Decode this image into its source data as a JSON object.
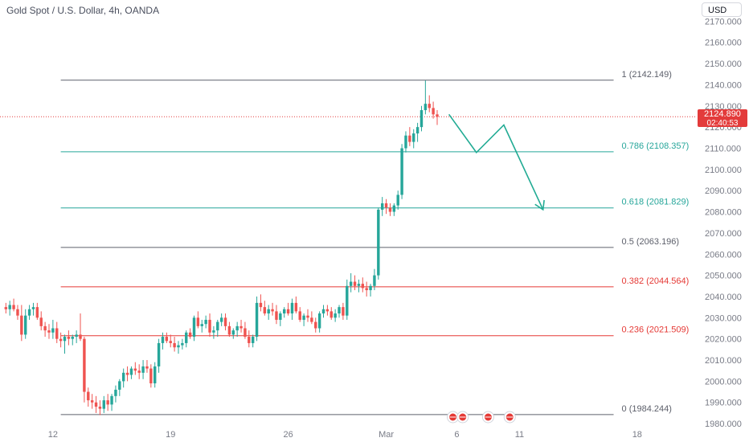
{
  "header": {
    "symbol_title": "Gold Spot / U.S. Dollar, 4h, OANDA",
    "currency_label": "USD"
  },
  "price_tag": {
    "price": "2124.890",
    "countdown": "02:40:53",
    "color": "#e33b3b"
  },
  "colors": {
    "up": "#26a69a",
    "down": "#ef5350",
    "fib_green": "#26a69a",
    "fib_red": "#e53935",
    "fib_gray": "#5d606b",
    "projection": "#22ab94"
  },
  "chart_data": {
    "type": "candlestick",
    "y_ticks": [
      "1980.000",
      "1990.000",
      "2000.000",
      "2010.000",
      "2020.000",
      "2030.000",
      "2040.000",
      "2050.000",
      "2060.000",
      "2070.000",
      "2080.000",
      "2090.000",
      "2100.000",
      "2110.000",
      "2120.000",
      "2130.000",
      "2140.000",
      "2150.000",
      "2160.000",
      "2170.000"
    ],
    "ylim": [
      1977,
      2180
    ],
    "x_ticks": [
      {
        "label": "12",
        "bar": 12
      },
      {
        "label": "19",
        "bar": 42
      },
      {
        "label": "26",
        "bar": 72
      },
      {
        "label": "Mar",
        "bar": 97
      },
      {
        "label": "6",
        "bar": 115
      },
      {
        "label": "11",
        "bar": 131
      },
      {
        "label": "18",
        "bar": 161
      }
    ],
    "xlim": [
      -1.5,
      176
    ],
    "fib_levels": [
      {
        "label": "1 (2142.149)",
        "value": 2142.149,
        "color": "gray"
      },
      {
        "label": "0.786 (2108.357)",
        "value": 2108.357,
        "color": "green"
      },
      {
        "label": "0.618 (2081.829)",
        "value": 2081.829,
        "color": "green"
      },
      {
        "label": "0.5 (2063.196)",
        "value": 2063.196,
        "color": "gray"
      },
      {
        "label": "0.382 (2044.564)",
        "value": 2044.564,
        "color": "red"
      },
      {
        "label": "0.236 (2021.509)",
        "value": 2021.509,
        "color": "red"
      },
      {
        "label": "0 (1984.244)",
        "value": 1984.244,
        "color": "gray"
      }
    ],
    "fib_start_bar": 14,
    "fib_end_bar": 155,
    "current_price": 2124.89,
    "projection_path": [
      [
        113,
        2126
      ],
      [
        120,
        2108
      ],
      [
        127,
        2121
      ],
      [
        137,
        2081
      ]
    ],
    "candles": [
      [
        2035,
        2037,
        2032,
        2034
      ],
      [
        2034,
        2038,
        2031,
        2036
      ],
      [
        2036,
        2039,
        2033,
        2034
      ],
      [
        2034,
        2036,
        2029,
        2031
      ],
      [
        2031,
        2036,
        2019,
        2022
      ],
      [
        2022,
        2034,
        2020,
        2031
      ],
      [
        2031,
        2036,
        2029,
        2034
      ],
      [
        2034,
        2037,
        2031,
        2035
      ],
      [
        2035,
        2037,
        2029,
        2030
      ],
      [
        2030,
        2033,
        2024,
        2026
      ],
      [
        2026,
        2028,
        2021,
        2024
      ],
      [
        2024,
        2027,
        2020,
        2023
      ],
      [
        2023,
        2029,
        2020,
        2025
      ],
      [
        2025,
        2028,
        2018,
        2020
      ],
      [
        2020,
        2023,
        2016,
        2019
      ],
      [
        2019,
        2022,
        2013,
        2021
      ],
      [
        2021,
        2024,
        2017,
        2020
      ],
      [
        2020,
        2022,
        2017,
        2021
      ],
      [
        2021,
        2024,
        2018,
        2022
      ],
      [
        2022,
        2032,
        2019,
        2020
      ],
      [
        2020,
        2021,
        1990,
        1995
      ],
      [
        1995,
        1997,
        1988,
        1991
      ],
      [
        1991,
        1994,
        1987,
        1990
      ],
      [
        1990,
        1993,
        1985,
        1988
      ],
      [
        1988,
        1991,
        1984,
        1987
      ],
      [
        1987,
        1993,
        1985,
        1991
      ],
      [
        1991,
        1994,
        1986,
        1989
      ],
      [
        1989,
        1994,
        1986,
        1993
      ],
      [
        1993,
        1998,
        1990,
        1996
      ],
      [
        1996,
        2001,
        1993,
        2000
      ],
      [
        2000,
        2006,
        1997,
        2004
      ],
      [
        2004,
        2007,
        2000,
        2003
      ],
      [
        2003,
        2007,
        2001,
        2006
      ],
      [
        2006,
        2009,
        2003,
        2005
      ],
      [
        2005,
        2008,
        2001,
        2004
      ],
      [
        2004,
        2010,
        2001,
        2007
      ],
      [
        2007,
        2010,
        2004,
        2006
      ],
      [
        2006,
        2008,
        1997,
        1999
      ],
      [
        1999,
        2009,
        1997,
        2007
      ],
      [
        2007,
        2020,
        2004,
        2018
      ],
      [
        2018,
        2023,
        2015,
        2021
      ],
      [
        2021,
        2023,
        2018,
        2019
      ],
      [
        2019,
        2022,
        2016,
        2018
      ],
      [
        2018,
        2021,
        2014,
        2016
      ],
      [
        2016,
        2019,
        2013,
        2017
      ],
      [
        2017,
        2020,
        2015,
        2018
      ],
      [
        2018,
        2024,
        2016,
        2023
      ],
      [
        2023,
        2025,
        2020,
        2021
      ],
      [
        2021,
        2031,
        2019,
        2030
      ],
      [
        2030,
        2033,
        2025,
        2026
      ],
      [
        2026,
        2029,
        2023,
        2027
      ],
      [
        2027,
        2031,
        2025,
        2029
      ],
      [
        2029,
        2032,
        2021,
        2023
      ],
      [
        2023,
        2026,
        2020,
        2024
      ],
      [
        2024,
        2029,
        2021,
        2028
      ],
      [
        2028,
        2032,
        2026,
        2030
      ],
      [
        2030,
        2032,
        2024,
        2026
      ],
      [
        2026,
        2028,
        2021,
        2022
      ],
      [
        2022,
        2025,
        2020,
        2024
      ],
      [
        2024,
        2028,
        2021,
        2026
      ],
      [
        2026,
        2029,
        2023,
        2025
      ],
      [
        2025,
        2028,
        2020,
        2021
      ],
      [
        2021,
        2024,
        2016,
        2018
      ],
      [
        2018,
        2022,
        2016,
        2021
      ],
      [
        2021,
        2040,
        2019,
        2037
      ],
      [
        2037,
        2041,
        2033,
        2035
      ],
      [
        2035,
        2038,
        2031,
        2032
      ],
      [
        2032,
        2036,
        2029,
        2034
      ],
      [
        2034,
        2037,
        2031,
        2033
      ],
      [
        2033,
        2036,
        2027,
        2029
      ],
      [
        2029,
        2033,
        2026,
        2032
      ],
      [
        2032,
        2035,
        2030,
        2034
      ],
      [
        2034,
        2037,
        2031,
        2032
      ],
      [
        2032,
        2039,
        2029,
        2037
      ],
      [
        2037,
        2040,
        2032,
        2033
      ],
      [
        2033,
        2035,
        2028,
        2029
      ],
      [
        2029,
        2032,
        2026,
        2031
      ],
      [
        2031,
        2034,
        2028,
        2030
      ],
      [
        2030,
        2033,
        2027,
        2028
      ],
      [
        2028,
        2030,
        2023,
        2025
      ],
      [
        2025,
        2033,
        2023,
        2032
      ],
      [
        2032,
        2036,
        2030,
        2034
      ],
      [
        2034,
        2036,
        2031,
        2033
      ],
      [
        2033,
        2035,
        2029,
        2030
      ],
      [
        2030,
        2034,
        2028,
        2032
      ],
      [
        2032,
        2036,
        2030,
        2035
      ],
      [
        2035,
        2037,
        2029,
        2031
      ],
      [
        2031,
        2048,
        2029,
        2045
      ],
      [
        2045,
        2051,
        2042,
        2047
      ],
      [
        2047,
        2050,
        2043,
        2045
      ],
      [
        2045,
        2048,
        2042,
        2046
      ],
      [
        2046,
        2049,
        2042,
        2044
      ],
      [
        2044,
        2047,
        2040,
        2043
      ],
      [
        2043,
        2046,
        2040,
        2045
      ],
      [
        2045,
        2053,
        2043,
        2050
      ],
      [
        2050,
        2082,
        2048,
        2081
      ],
      [
        2081,
        2087,
        2078,
        2084
      ],
      [
        2084,
        2086,
        2079,
        2082
      ],
      [
        2082,
        2084,
        2078,
        2080
      ],
      [
        2080,
        2084,
        2078,
        2083
      ],
      [
        2083,
        2090,
        2081,
        2088
      ],
      [
        2088,
        2112,
        2086,
        2110
      ],
      [
        2110,
        2118,
        2108,
        2116
      ],
      [
        2116,
        2120,
        2111,
        2113
      ],
      [
        2113,
        2119,
        2110,
        2117
      ],
      [
        2117,
        2122,
        2113,
        2120
      ],
      [
        2120,
        2130,
        2118,
        2128
      ],
      [
        2128,
        2142,
        2126,
        2131
      ],
      [
        2131,
        2135,
        2127,
        2129
      ],
      [
        2129,
        2132,
        2124,
        2126
      ],
      [
        2126,
        2128,
        2121,
        2124.89
      ]
    ]
  }
}
